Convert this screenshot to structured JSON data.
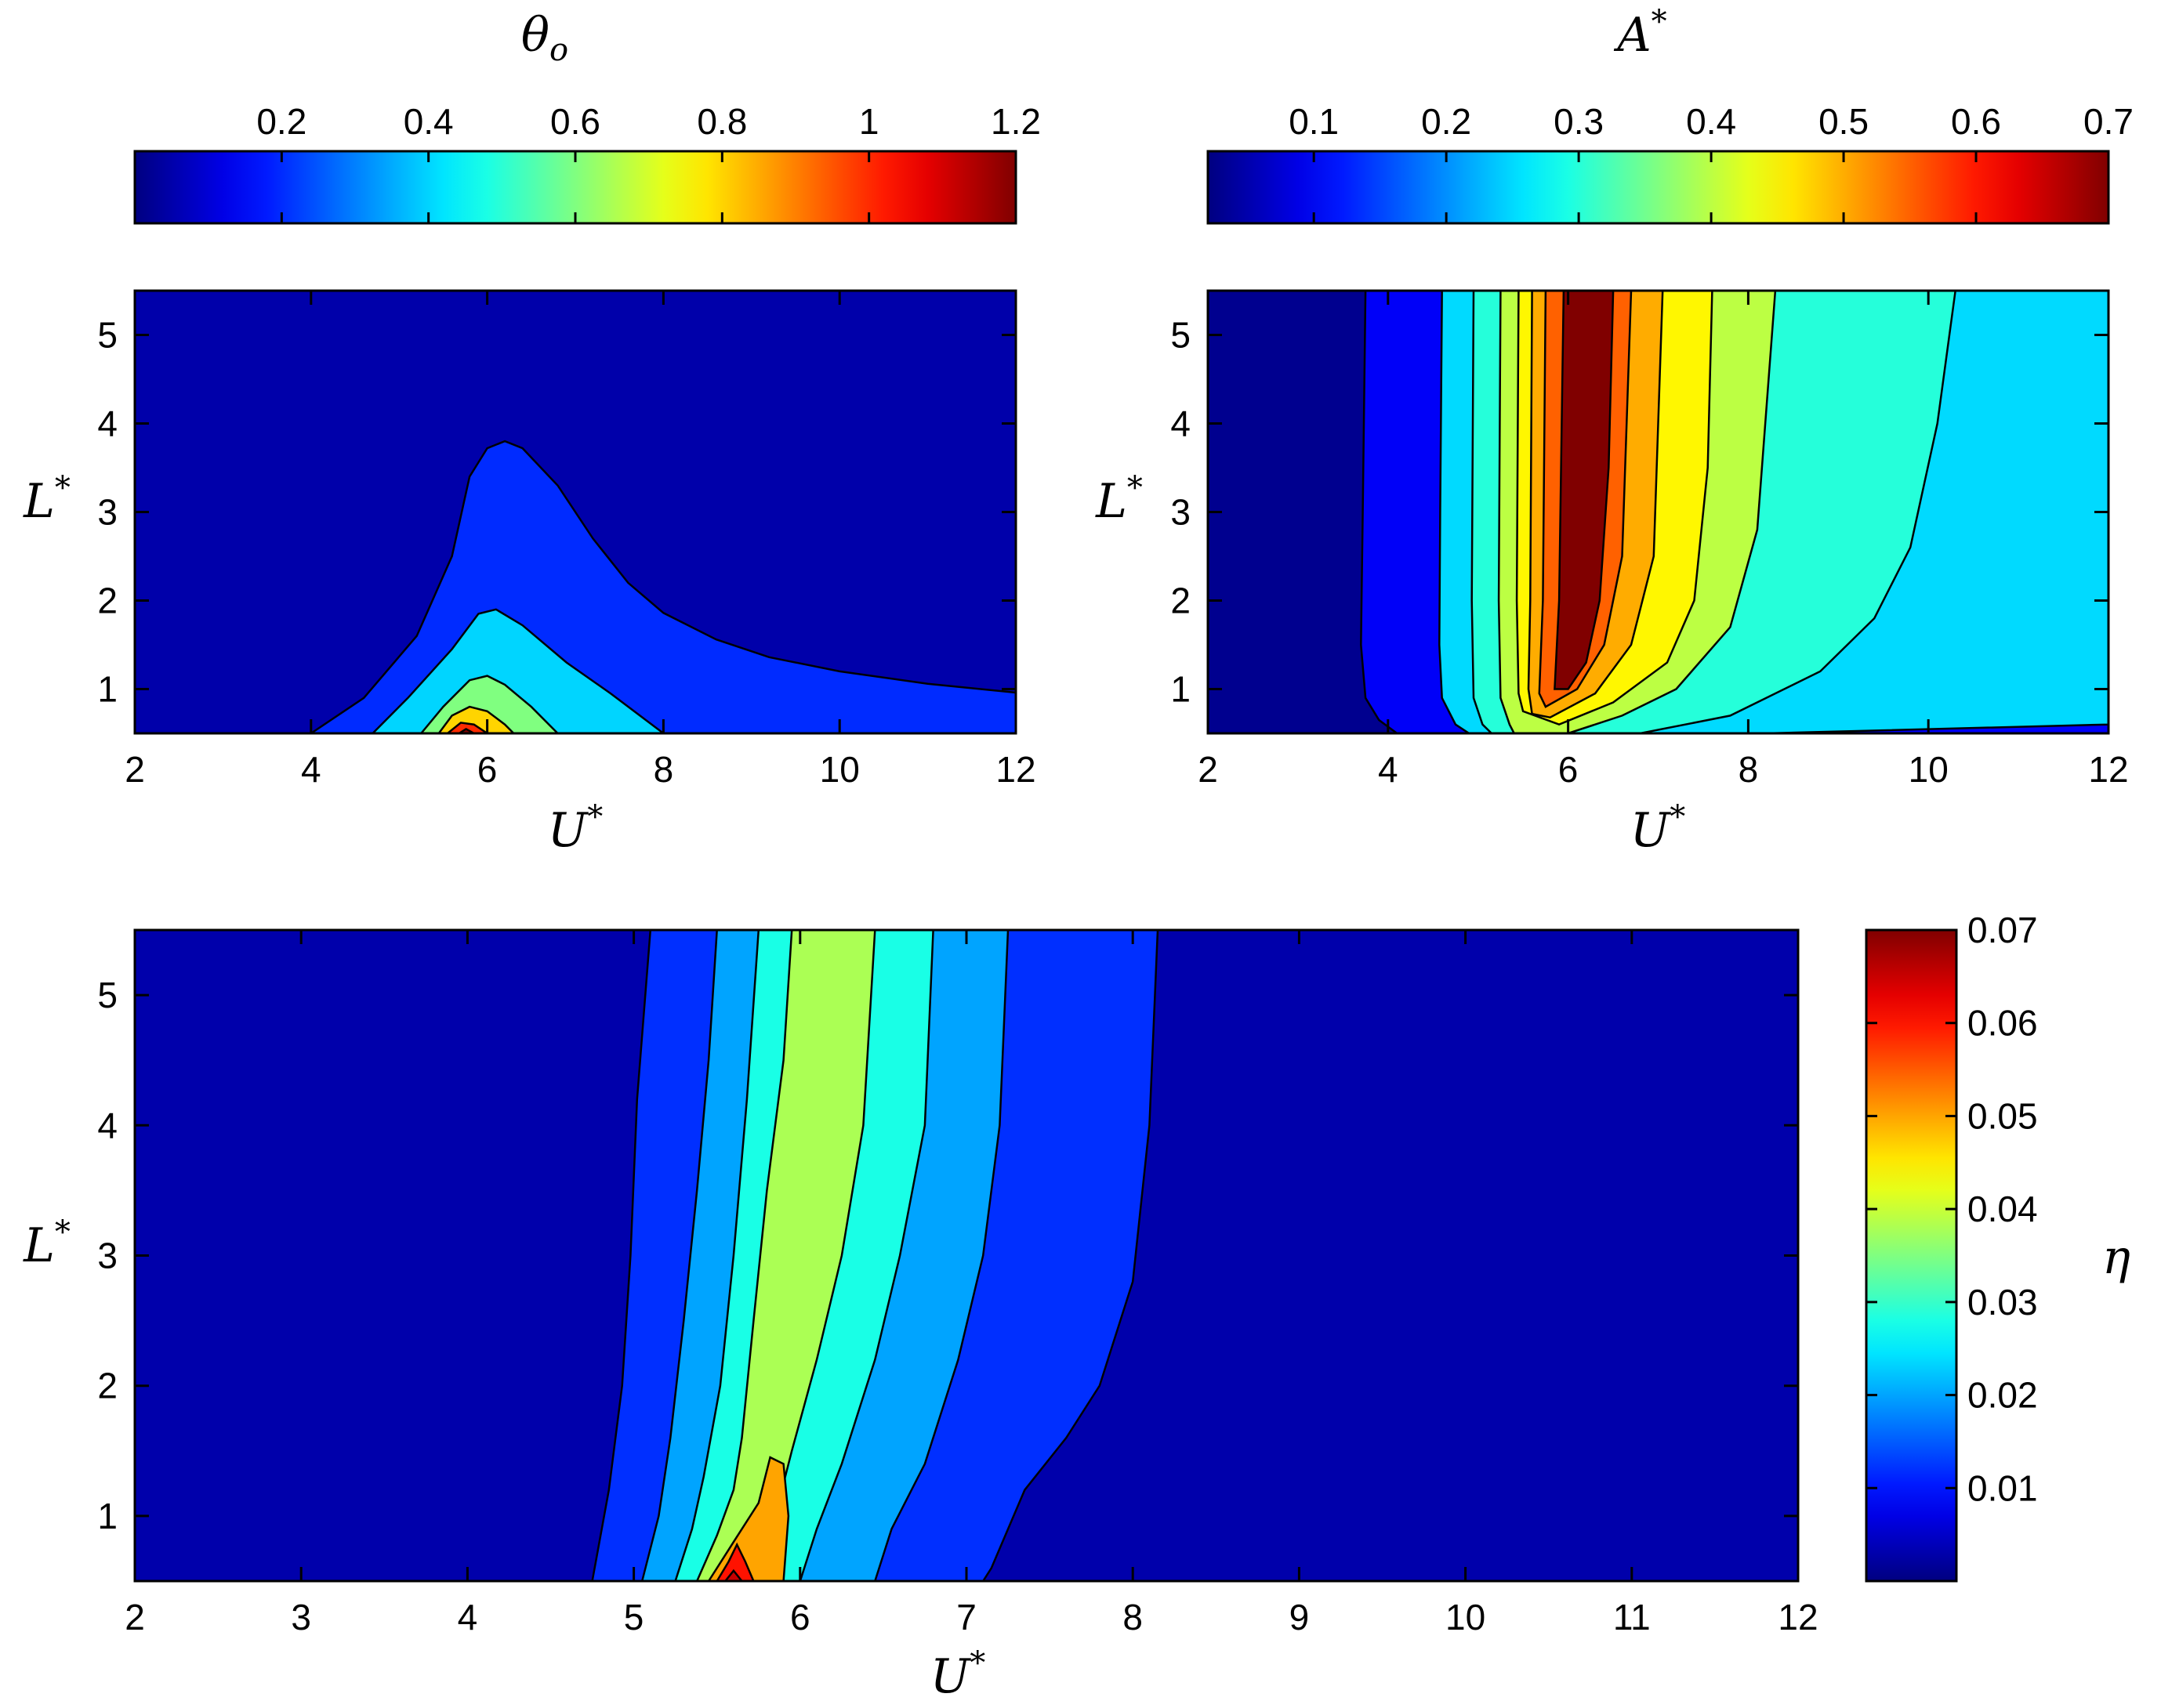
{
  "chart_data": [
    {
      "type": "heatmap",
      "subtype": "filled-contour",
      "colormap": "jet",
      "colorbar": {
        "title": "θ",
        "title_subscript": "o",
        "placement": "top",
        "range": [
          0.0,
          1.2
        ],
        "ticks": [
          0.2,
          0.4,
          0.6,
          0.8,
          1.0,
          1.2
        ],
        "tick_labels": [
          "0.2",
          "0.4",
          "0.6",
          "0.8",
          "1",
          "1.2"
        ]
      },
      "xlabel": "U",
      "xlabel_sup": "*",
      "ylabel": "L",
      "ylabel_sup": "*",
      "xlim": [
        2,
        12
      ],
      "ylim": [
        0.5,
        5.5
      ],
      "xticks": [
        2,
        4,
        6,
        8,
        10,
        12
      ],
      "xtick_labels": [
        "2",
        "4",
        "6",
        "8",
        "10",
        "12"
      ],
      "yticks": [
        1,
        2,
        3,
        4,
        5
      ],
      "ytick_labels": [
        "1",
        "2",
        "3",
        "4",
        "5"
      ],
      "background_level": 0.05,
      "regions": [
        {
          "level": 0.2,
          "points": [
            [
              4.0,
              0.5
            ],
            [
              4.6,
              0.9
            ],
            [
              5.2,
              1.6
            ],
            [
              5.6,
              2.5
            ],
            [
              5.8,
              3.4
            ],
            [
              6.0,
              3.72
            ],
            [
              6.2,
              3.8
            ],
            [
              6.4,
              3.72
            ],
            [
              6.8,
              3.3
            ],
            [
              7.2,
              2.7
            ],
            [
              7.6,
              2.2
            ],
            [
              8.0,
              1.86
            ],
            [
              8.6,
              1.56
            ],
            [
              9.2,
              1.36
            ],
            [
              10.0,
              1.2
            ],
            [
              11.0,
              1.06
            ],
            [
              12.0,
              0.96
            ],
            [
              12.0,
              0.5
            ]
          ]
        },
        {
          "level": 0.4,
          "points": [
            [
              4.7,
              0.5
            ],
            [
              5.1,
              0.9
            ],
            [
              5.6,
              1.45
            ],
            [
              5.9,
              1.85
            ],
            [
              6.1,
              1.9
            ],
            [
              6.4,
              1.72
            ],
            [
              6.9,
              1.3
            ],
            [
              7.4,
              0.95
            ],
            [
              8.0,
              0.5
            ]
          ]
        },
        {
          "level": 0.6,
          "points": [
            [
              5.25,
              0.5
            ],
            [
              5.5,
              0.8
            ],
            [
              5.8,
              1.1
            ],
            [
              6.0,
              1.15
            ],
            [
              6.2,
              1.05
            ],
            [
              6.5,
              0.8
            ],
            [
              6.8,
              0.5
            ]
          ]
        },
        {
          "level": 0.8,
          "points": [
            [
              5.45,
              0.5
            ],
            [
              5.6,
              0.7
            ],
            [
              5.8,
              0.8
            ],
            [
              6.0,
              0.75
            ],
            [
              6.2,
              0.6
            ],
            [
              6.3,
              0.5
            ]
          ]
        },
        {
          "level": 1.0,
          "points": [
            [
              5.55,
              0.5
            ],
            [
              5.7,
              0.62
            ],
            [
              5.85,
              0.6
            ],
            [
              6.0,
              0.5
            ]
          ]
        },
        {
          "level": 1.2,
          "points": [
            [
              5.68,
              0.5
            ],
            [
              5.76,
              0.55
            ],
            [
              5.85,
              0.5
            ]
          ]
        }
      ]
    },
    {
      "type": "heatmap",
      "subtype": "filled-contour",
      "colormap": "jet",
      "colorbar": {
        "title": "A",
        "title_superscript": "*",
        "placement": "top",
        "range": [
          0.02,
          0.7
        ],
        "ticks": [
          0.1,
          0.2,
          0.3,
          0.4,
          0.5,
          0.6,
          0.7
        ],
        "tick_labels": [
          "0.1",
          "0.2",
          "0.3",
          "0.4",
          "0.5",
          "0.6",
          "0.7"
        ]
      },
      "xlabel": "U",
      "xlabel_sup": "*",
      "ylabel": "L",
      "ylabel_sup": "*",
      "xlim": [
        2,
        12
      ],
      "ylim": [
        0.5,
        5.5
      ],
      "xticks": [
        2,
        4,
        6,
        8,
        10,
        12
      ],
      "xtick_labels": [
        "2",
        "4",
        "6",
        "8",
        "10",
        "12"
      ],
      "yticks": [
        1,
        2,
        3,
        4,
        5
      ],
      "ytick_labels": [
        "1",
        "2",
        "3",
        "4",
        "5"
      ],
      "background_level": 0.03,
      "regions": [
        {
          "level": 0.1,
          "points": [
            [
              3.75,
              5.5
            ],
            [
              3.72,
              3.0
            ],
            [
              3.7,
              1.5
            ],
            [
              3.75,
              0.9
            ],
            [
              3.9,
              0.65
            ],
            [
              4.1,
              0.5
            ],
            [
              12.0,
              0.5
            ],
            [
              12.0,
              5.5
            ]
          ]
        },
        {
          "level": 0.25,
          "points": [
            [
              4.6,
              5.5
            ],
            [
              4.58,
              3.0
            ],
            [
              4.57,
              1.5
            ],
            [
              4.6,
              0.9
            ],
            [
              4.75,
              0.6
            ],
            [
              4.9,
              0.5
            ],
            [
              8.2,
              0.5
            ],
            [
              12.0,
              0.6
            ],
            [
              12.0,
              5.5
            ]
          ]
        },
        {
          "level": 0.3,
          "points": [
            [
              4.95,
              5.5
            ],
            [
              4.93,
              2.0
            ],
            [
              4.95,
              0.9
            ],
            [
              5.05,
              0.6
            ],
            [
              5.15,
              0.5
            ],
            [
              6.8,
              0.5
            ],
            [
              7.8,
              0.7
            ],
            [
              8.8,
              1.2
            ],
            [
              9.4,
              1.8
            ],
            [
              9.8,
              2.6
            ],
            [
              10.1,
              4.0
            ],
            [
              10.3,
              5.5
            ]
          ]
        },
        {
          "level": 0.4,
          "points": [
            [
              5.25,
              5.5
            ],
            [
              5.23,
              2.0
            ],
            [
              5.25,
              0.9
            ],
            [
              5.35,
              0.6
            ],
            [
              5.4,
              0.5
            ],
            [
              6.0,
              0.5
            ],
            [
              6.6,
              0.7
            ],
            [
              7.2,
              1.0
            ],
            [
              7.8,
              1.7
            ],
            [
              8.1,
              2.8
            ],
            [
              8.3,
              5.5
            ]
          ]
        },
        {
          "level": 0.45,
          "points": [
            [
              5.45,
              5.5
            ],
            [
              5.43,
              2.0
            ],
            [
              5.45,
              0.95
            ],
            [
              5.5,
              0.75
            ],
            [
              5.9,
              0.6
            ],
            [
              6.5,
              0.85
            ],
            [
              7.1,
              1.3
            ],
            [
              7.4,
              2.0
            ],
            [
              7.55,
              3.5
            ],
            [
              7.6,
              5.5
            ]
          ]
        },
        {
          "level": 0.5,
          "points": [
            [
              5.6,
              5.5
            ],
            [
              5.58,
              2.0
            ],
            [
              5.56,
              1.0
            ],
            [
              5.6,
              0.72
            ],
            [
              5.8,
              0.68
            ],
            [
              6.3,
              0.95
            ],
            [
              6.7,
              1.5
            ],
            [
              6.95,
              2.5
            ],
            [
              7.05,
              5.5
            ]
          ]
        },
        {
          "level": 0.55,
          "points": [
            [
              5.75,
              5.5
            ],
            [
              5.72,
              2.0
            ],
            [
              5.68,
              0.95
            ],
            [
              5.75,
              0.8
            ],
            [
              6.1,
              1.0
            ],
            [
              6.4,
              1.5
            ],
            [
              6.6,
              2.5
            ],
            [
              6.7,
              5.5
            ]
          ]
        },
        {
          "level": 0.7,
          "points": [
            [
              5.95,
              5.5
            ],
            [
              5.9,
              2.0
            ],
            [
              5.85,
              1.0
            ],
            [
              6.0,
              1.0
            ],
            [
              6.2,
              1.3
            ],
            [
              6.35,
              2.0
            ],
            [
              6.45,
              3.5
            ],
            [
              6.5,
              5.5
            ]
          ]
        }
      ]
    },
    {
      "type": "heatmap",
      "subtype": "filled-contour",
      "colormap": "jet",
      "colorbar": {
        "title": "η",
        "placement": "right",
        "range": [
          0.0,
          0.07
        ],
        "ticks": [
          0.01,
          0.02,
          0.03,
          0.04,
          0.05,
          0.06,
          0.07
        ],
        "tick_labels": [
          "0.01",
          "0.02",
          "0.03",
          "0.04",
          "0.05",
          "0.06",
          "0.07"
        ]
      },
      "xlabel": "U",
      "xlabel_sup": "*",
      "ylabel": "L",
      "ylabel_sup": "*",
      "xlim": [
        2,
        12
      ],
      "ylim": [
        0.5,
        5.5
      ],
      "xticks": [
        2,
        3,
        4,
        5,
        6,
        7,
        8,
        9,
        10,
        11,
        12
      ],
      "xtick_labels": [
        "2",
        "3",
        "4",
        "5",
        "6",
        "7",
        "8",
        "9",
        "10",
        "11",
        "12"
      ],
      "yticks": [
        1,
        2,
        3,
        4,
        5
      ],
      "ytick_labels": [
        "1",
        "2",
        "3",
        "4",
        "5"
      ],
      "background_level": 0.003,
      "regions": [
        {
          "level": 0.012,
          "points": [
            [
              4.75,
              0.5
            ],
            [
              4.85,
              1.2
            ],
            [
              4.93,
              2.0
            ],
            [
              4.98,
              3.0
            ],
            [
              5.02,
              4.2
            ],
            [
              5.1,
              5.5
            ],
            [
              8.15,
              5.5
            ],
            [
              8.1,
              4.0
            ],
            [
              8.0,
              2.8
            ],
            [
              7.8,
              2.0
            ],
            [
              7.6,
              1.6
            ],
            [
              7.35,
              1.2
            ],
            [
              7.15,
              0.6
            ],
            [
              7.1,
              0.5
            ]
          ]
        },
        {
          "level": 0.02,
          "points": [
            [
              5.05,
              0.5
            ],
            [
              5.15,
              1.0
            ],
            [
              5.22,
              1.6
            ],
            [
              5.3,
              2.5
            ],
            [
              5.38,
              3.5
            ],
            [
              5.45,
              4.5
            ],
            [
              5.5,
              5.5
            ],
            [
              7.25,
              5.5
            ],
            [
              7.2,
              4.0
            ],
            [
              7.1,
              3.0
            ],
            [
              6.95,
              2.2
            ],
            [
              6.75,
              1.4
            ],
            [
              6.55,
              0.9
            ],
            [
              6.45,
              0.5
            ]
          ]
        },
        {
          "level": 0.028,
          "points": [
            [
              5.25,
              0.5
            ],
            [
              5.35,
              0.9
            ],
            [
              5.42,
              1.3
            ],
            [
              5.52,
              2.0
            ],
            [
              5.6,
              3.0
            ],
            [
              5.68,
              4.2
            ],
            [
              5.75,
              5.5
            ],
            [
              6.8,
              5.5
            ],
            [
              6.75,
              4.0
            ],
            [
              6.6,
              3.0
            ],
            [
              6.45,
              2.2
            ],
            [
              6.25,
              1.4
            ],
            [
              6.1,
              0.9
            ],
            [
              6.0,
              0.5
            ]
          ]
        },
        {
          "level": 0.038,
          "points": [
            [
              5.38,
              0.5
            ],
            [
              5.5,
              0.85
            ],
            [
              5.6,
              1.2
            ],
            [
              5.65,
              1.6
            ],
            [
              5.72,
              2.5
            ],
            [
              5.8,
              3.5
            ],
            [
              5.9,
              4.5
            ],
            [
              5.95,
              5.5
            ],
            [
              6.45,
              5.5
            ],
            [
              6.38,
              4.0
            ],
            [
              6.25,
              3.0
            ],
            [
              6.1,
              2.2
            ],
            [
              5.95,
              1.5
            ],
            [
              5.85,
              1.0
            ],
            [
              5.8,
              0.5
            ]
          ]
        },
        {
          "level": 0.05,
          "points": [
            [
              5.45,
              0.5
            ],
            [
              5.6,
              0.8
            ],
            [
              5.75,
              1.1
            ],
            [
              5.82,
              1.45
            ],
            [
              5.9,
              1.4
            ],
            [
              5.93,
              1.0
            ],
            [
              5.9,
              0.5
            ]
          ]
        },
        {
          "level": 0.06,
          "points": [
            [
              5.5,
              0.5
            ],
            [
              5.57,
              0.65
            ],
            [
              5.62,
              0.78
            ],
            [
              5.67,
              0.65
            ],
            [
              5.72,
              0.5
            ]
          ]
        },
        {
          "level": 0.065,
          "points": [
            [
              5.55,
              0.5
            ],
            [
              5.6,
              0.58
            ],
            [
              5.65,
              0.5
            ]
          ]
        }
      ]
    }
  ]
}
